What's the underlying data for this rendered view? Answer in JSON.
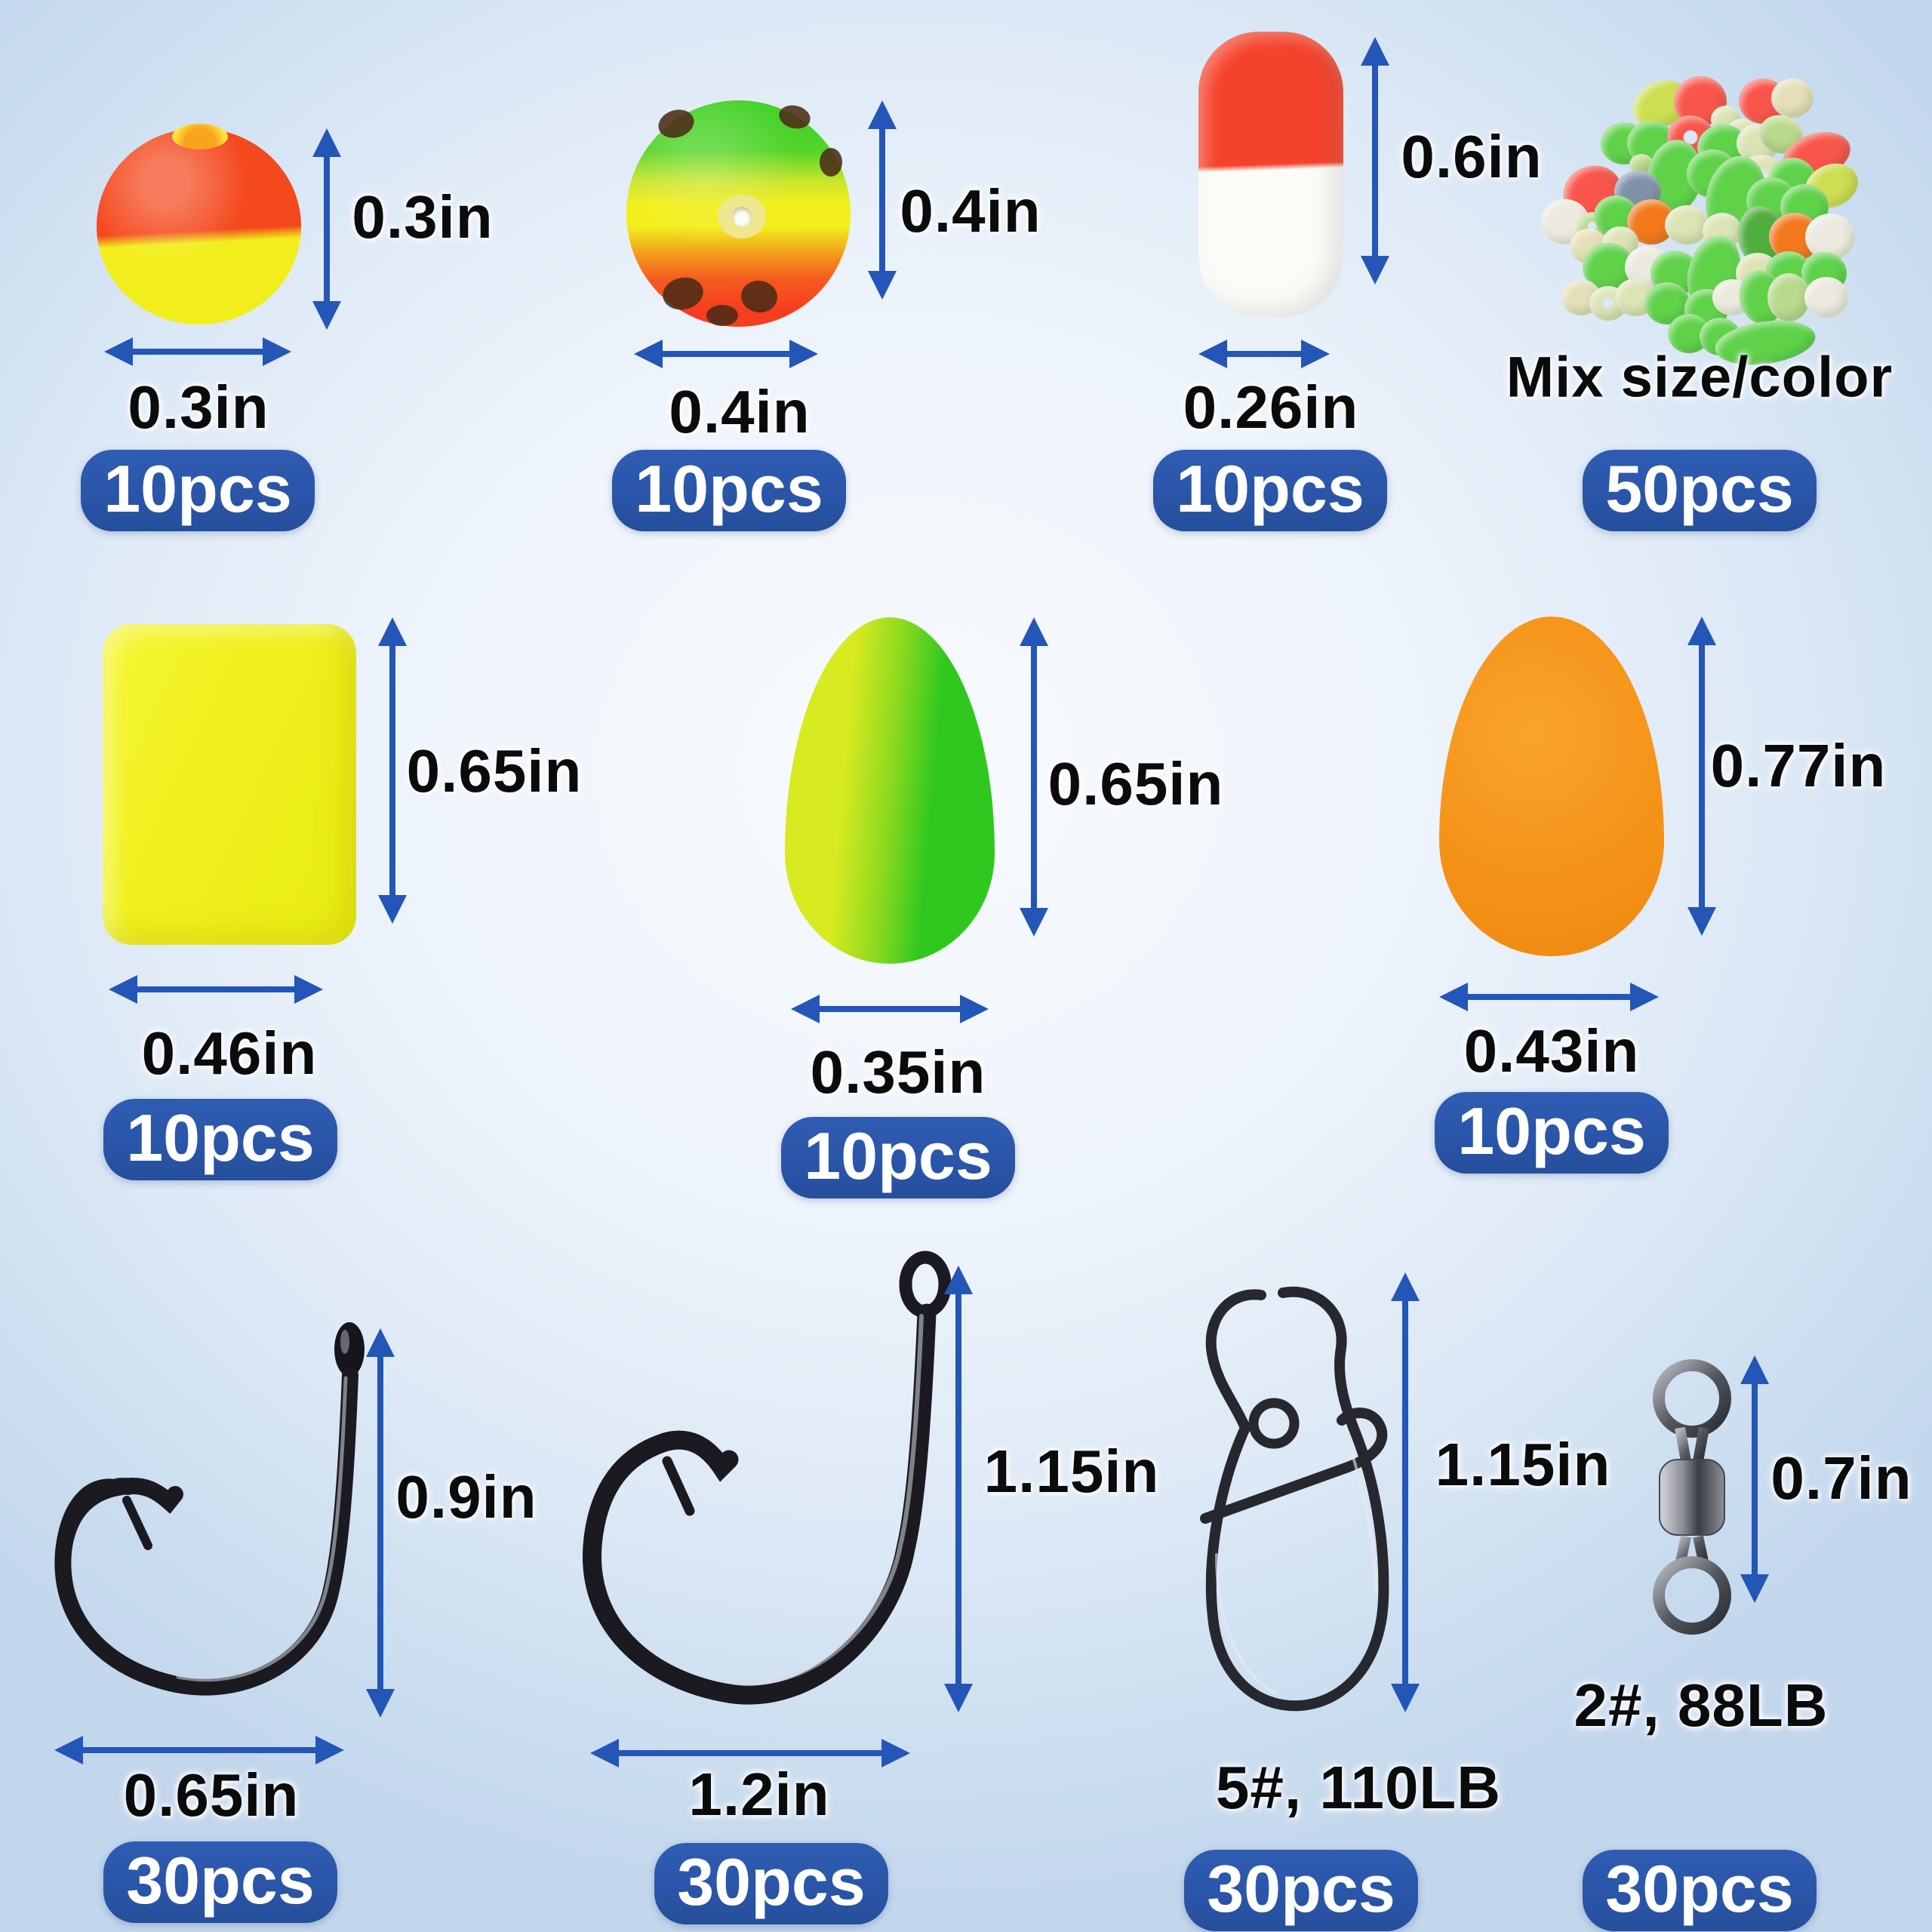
{
  "page": {
    "kind": "fishing-tackle-size-diagram"
  },
  "colors": {
    "badge_blue": "#2a55a8",
    "badge_text": "#ffffff",
    "arrow_blue": "#2456b8",
    "label_black": "#0b0b0b",
    "background_center": "#f8fbfe",
    "background_edge": "#c2d6ec",
    "float_red": "#f4481d",
    "float_yellow": "#f2ee1c",
    "float_green": "#30c81f",
    "float_orange": "#f59415",
    "pill_red": "#f5422a",
    "metal_dark": "#1a1a20"
  },
  "items": [
    {
      "name": "two-tone ball float",
      "height": "0.3in",
      "width": "0.3in",
      "qty": "10pcs"
    },
    {
      "name": "rainbow dotted ball float",
      "height": "0.4in",
      "width": "0.4in",
      "qty": "10pcs"
    },
    {
      "name": "red-white cylinder float",
      "height": "0.6in",
      "width": "0.26in",
      "qty": "10pcs"
    },
    {
      "name": "luminous beads",
      "note": "Mix size/color",
      "qty": "50pcs",
      "palette": [
        "#5fd24a",
        "#e4dfb8",
        "#f8564a",
        "#f4781c",
        "#cede52",
        "#7f92aa",
        "#eceade",
        "#b9d98c",
        "#4fae3e",
        "#dce3b4"
      ]
    },
    {
      "name": "yellow cylinder float",
      "height": "0.65in",
      "width": "0.46in",
      "qty": "10pcs"
    },
    {
      "name": "green bullet float",
      "height": "0.65in",
      "width": "0.35in",
      "qty": "10pcs"
    },
    {
      "name": "orange bullet float",
      "height": "0.77in",
      "width": "0.43in",
      "qty": "10pcs"
    },
    {
      "name": "circle hook small",
      "height": "0.9in",
      "width": "0.65in",
      "qty": "30pcs"
    },
    {
      "name": "circle hook large",
      "height": "1.15in",
      "width": "1.2in",
      "qty": "30pcs"
    },
    {
      "name": "duo-lock snap",
      "height": "1.15in",
      "spec": "5#, 110LB",
      "qty": "30pcs"
    },
    {
      "name": "barrel swivel",
      "height": "0.7in",
      "spec": "2#, 88LB",
      "qty": "30pcs"
    }
  ]
}
